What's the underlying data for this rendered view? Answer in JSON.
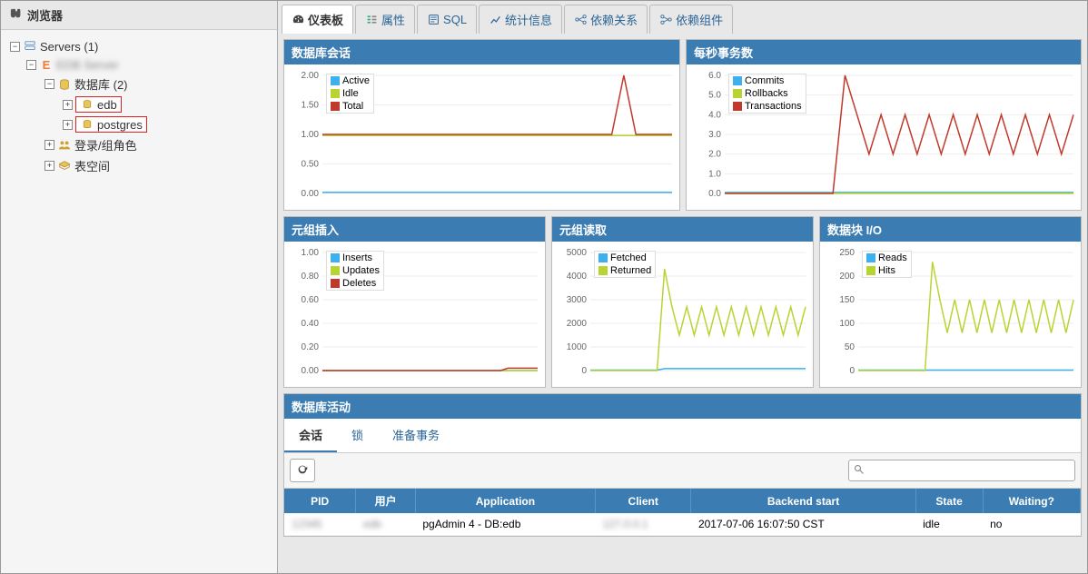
{
  "sidebar": {
    "title": "浏览器",
    "root": "Servers (1)",
    "server_name": "EDB Server",
    "databases_label": "数据库 (2)",
    "db1": "edb",
    "db2": "postgres",
    "roles_label": "登录/组角色",
    "tablespaces_label": "表空间"
  },
  "tabs": {
    "dashboard": "仪表板",
    "properties": "属性",
    "sql": "SQL",
    "stats": "统计信息",
    "deps": "依赖关系",
    "dependents": "依赖组件"
  },
  "panels": {
    "sessions": {
      "title": "数据库会话",
      "legend": [
        "Active",
        "Idle",
        "Total"
      ],
      "colors": [
        "#3eb0ef",
        "#b8d432",
        "#c1392b"
      ],
      "ylim": [
        0,
        2.0
      ],
      "ytick_step": 0.5,
      "series": [
        [
          0.02,
          0.02,
          0.02,
          0.02,
          0.02,
          0.02,
          0.02,
          0.02,
          0.02,
          0.02,
          0.02,
          0.02,
          0.02,
          0.02,
          0.02,
          0.02,
          0.02,
          0.02,
          0.02,
          0.02,
          0.02,
          0.02,
          0.02,
          0.02,
          0.02,
          0.02,
          0.02,
          0.02,
          0.02,
          0.02
        ],
        [
          0.98,
          0.98,
          0.98,
          0.98,
          0.98,
          0.98,
          0.98,
          0.98,
          0.98,
          0.98,
          0.98,
          0.98,
          0.98,
          0.98,
          0.98,
          0.98,
          0.98,
          0.98,
          0.98,
          0.98,
          0.98,
          0.98,
          0.98,
          0.98,
          0.98,
          0.98,
          0.98,
          0.98,
          0.98,
          0.98
        ],
        [
          1.0,
          1.0,
          1.0,
          1.0,
          1.0,
          1.0,
          1.0,
          1.0,
          1.0,
          1.0,
          1.0,
          1.0,
          1.0,
          1.0,
          1.0,
          1.0,
          1.0,
          1.0,
          1.0,
          1.0,
          1.0,
          1.0,
          1.0,
          1.0,
          1.0,
          2.0,
          1.0,
          1.0,
          1.0,
          1.0
        ]
      ]
    },
    "tps": {
      "title": "每秒事务数",
      "legend": [
        "Commits",
        "Rollbacks",
        "Transactions"
      ],
      "colors": [
        "#3eb0ef",
        "#b8d432",
        "#c1392b"
      ],
      "ylim": [
        0,
        6.0
      ],
      "ytick_step": 1.0,
      "series": [
        [
          0.05,
          0.05,
          0.05,
          0.05,
          0.05,
          0.05,
          0.05,
          0.05,
          0.05,
          0.05,
          0.05,
          0.05,
          0.05,
          0.05,
          0.05,
          0.05,
          0.05,
          0.05,
          0.05,
          0.05,
          0.05,
          0.05,
          0.05,
          0.05,
          0.05,
          0.05,
          0.05,
          0.05,
          0.05,
          0.05
        ],
        [
          0,
          0,
          0,
          0,
          0,
          0,
          0,
          0,
          0,
          0,
          0,
          0,
          0,
          0,
          0,
          0,
          0,
          0,
          0,
          0,
          0,
          0,
          0,
          0,
          0,
          0,
          0,
          0,
          0,
          0
        ],
        [
          0,
          0,
          0,
          0,
          0,
          0,
          0,
          0,
          0,
          0,
          6.0,
          4.0,
          2.0,
          4.0,
          2.0,
          4.0,
          2.0,
          4.0,
          2.0,
          4.0,
          2.0,
          4.0,
          2.0,
          4.0,
          2.0,
          4.0,
          2.0,
          4.0,
          2.0,
          4.0
        ]
      ]
    },
    "ti": {
      "title": "元组插入",
      "legend": [
        "Inserts",
        "Updates",
        "Deletes"
      ],
      "colors": [
        "#3eb0ef",
        "#b8d432",
        "#c1392b"
      ],
      "ylim": [
        0,
        1.0
      ],
      "ytick_step": 0.2,
      "series": [
        [
          0,
          0,
          0,
          0,
          0,
          0,
          0,
          0,
          0,
          0,
          0,
          0,
          0,
          0,
          0,
          0,
          0,
          0,
          0,
          0,
          0,
          0,
          0,
          0,
          0,
          0,
          0,
          0,
          0,
          0
        ],
        [
          0,
          0,
          0,
          0,
          0,
          0,
          0,
          0,
          0,
          0,
          0,
          0,
          0,
          0,
          0,
          0,
          0,
          0,
          0,
          0,
          0,
          0,
          0,
          0,
          0,
          0,
          0,
          0,
          0,
          0
        ],
        [
          0,
          0,
          0,
          0,
          0,
          0,
          0,
          0,
          0,
          0,
          0,
          0,
          0,
          0,
          0,
          0,
          0,
          0,
          0,
          0,
          0,
          0,
          0,
          0,
          0,
          0.02,
          0.02,
          0.02,
          0.02,
          0.02
        ]
      ]
    },
    "to": {
      "title": "元组读取",
      "legend": [
        "Fetched",
        "Returned"
      ],
      "colors": [
        "#3eb0ef",
        "#b8d432"
      ],
      "ylim": [
        0,
        5000
      ],
      "ytick_step": 1000,
      "series": [
        [
          20,
          20,
          20,
          20,
          20,
          20,
          20,
          20,
          20,
          20,
          80,
          80,
          80,
          80,
          80,
          80,
          80,
          80,
          80,
          80,
          80,
          80,
          80,
          80,
          80,
          80,
          80,
          80,
          80,
          80
        ],
        [
          0,
          0,
          0,
          0,
          0,
          0,
          0,
          0,
          0,
          0,
          4300,
          2700,
          1500,
          2700,
          1500,
          2700,
          1500,
          2700,
          1500,
          2700,
          1500,
          2700,
          1500,
          2700,
          1500,
          2700,
          1500,
          2700,
          1500,
          2700
        ]
      ]
    },
    "bio": {
      "title": "数据块 I/O",
      "legend": [
        "Reads",
        "Hits"
      ],
      "colors": [
        "#3eb0ef",
        "#b8d432"
      ],
      "ylim": [
        0,
        250
      ],
      "ytick_step": 50,
      "series": [
        [
          1,
          1,
          1,
          1,
          1,
          1,
          1,
          1,
          1,
          1,
          1,
          1,
          1,
          1,
          1,
          1,
          1,
          1,
          1,
          1,
          1,
          1,
          1,
          1,
          1,
          1,
          1,
          1,
          1,
          1
        ],
        [
          0,
          0,
          0,
          0,
          0,
          0,
          0,
          0,
          0,
          0,
          230,
          150,
          80,
          150,
          80,
          150,
          80,
          150,
          80,
          150,
          80,
          150,
          80,
          150,
          80,
          150,
          80,
          150,
          80,
          150
        ]
      ]
    }
  },
  "activity": {
    "title": "数据库活动",
    "tabs": {
      "sessions": "会话",
      "locks": "锁",
      "prepared": "准备事务"
    },
    "columns": [
      "PID",
      "用户",
      "Application",
      "Client",
      "Backend start",
      "State",
      "Waiting?"
    ],
    "rows": [
      {
        "pid": "12345",
        "user": "edb",
        "app": "pgAdmin 4 - DB:edb",
        "client": "127.0.0.1",
        "backend": "2017-07-06 16:07:50 CST",
        "state": "idle",
        "waiting": "no"
      }
    ]
  },
  "search": {
    "placeholder": ""
  }
}
